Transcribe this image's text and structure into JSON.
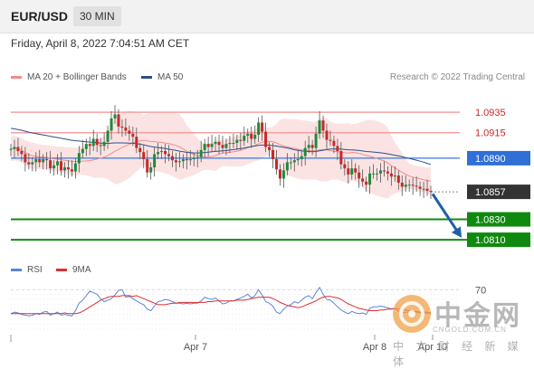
{
  "header": {
    "symbol": "EUR/USD",
    "interval": "30 MIN",
    "timestamp": "Friday, April 8, 2022 7:04:51 AM CET"
  },
  "legend": {
    "items": [
      {
        "name": "MA 20 + Bollinger Bands",
        "color": "#f08c8c"
      },
      {
        "name": "MA 50",
        "color": "#2b4f8c"
      }
    ],
    "credit": "Research © 2022 Trading Central"
  },
  "rsi_legend": {
    "items": [
      {
        "name": "RSI",
        "color": "#5b84d8"
      },
      {
        "name": "9MA",
        "color": "#d83030"
      }
    ]
  },
  "watermark": {
    "text": "中金网",
    "url": "CNGOLD.COM.CN",
    "subtitle": "中 文 财 经 新 媒 体"
  },
  "chart_data": [
    {
      "type": "candlestick",
      "title": "",
      "xlabel": "",
      "ylabel": "",
      "ylim": [
        1.0795,
        1.096
      ],
      "x_ticks": [
        "Apr 7",
        "Apr 8",
        "Apr 10"
      ],
      "grid": false,
      "series": [
        {
          "name": "MA 20 + Bollinger Bands",
          "type": "band",
          "color": "#f08c8c"
        },
        {
          "name": "MA 50",
          "type": "line",
          "color": "#2b4f8c"
        }
      ],
      "levels": [
        {
          "value": 1.0935,
          "label": "1.0935",
          "kind": "resistance",
          "color": "#f4a0a0"
        },
        {
          "value": 1.0915,
          "label": "1.0915",
          "kind": "resistance",
          "color": "#f4a0a0"
        },
        {
          "value": 1.089,
          "label": "1.0890",
          "kind": "pivot",
          "color": "#3a78e0"
        },
        {
          "value": 1.0857,
          "label": "1.0857",
          "kind": "last",
          "color": "#333333"
        },
        {
          "value": 1.083,
          "label": "1.0830",
          "kind": "target",
          "color": "#0f8a0f"
        },
        {
          "value": 1.081,
          "label": "1.0810",
          "kind": "target",
          "color": "#0f8a0f"
        }
      ],
      "forecast": {
        "from": 1.0855,
        "to": 1.0812,
        "direction": "down",
        "color": "#1f5fa8"
      },
      "closes": [
        1.0899,
        1.0901,
        1.0897,
        1.0894,
        1.0886,
        1.0884,
        1.0886,
        1.0889,
        1.0886,
        1.0889,
        1.0888,
        1.088,
        1.0883,
        1.0887,
        1.0878,
        1.0881,
        1.0879,
        1.0877,
        1.0885,
        1.0895,
        1.0899,
        1.0904,
        1.0902,
        1.0909,
        1.0903,
        1.0902,
        1.0906,
        1.0917,
        1.0929,
        1.0933,
        1.0921,
        1.092,
        1.0917,
        1.0914,
        1.0911,
        1.09,
        1.0896,
        1.0889,
        1.0876,
        1.0881,
        1.0894,
        1.0896,
        1.0897,
        1.0894,
        1.0892,
        1.0888,
        1.0886,
        1.0887,
        1.0889,
        1.0888,
        1.0889,
        1.089,
        1.0891,
        1.0898,
        1.0904,
        1.0901,
        1.0904,
        1.0906,
        1.0903,
        1.09,
        1.0904,
        1.0905,
        1.0905,
        1.0908,
        1.0907,
        1.0912,
        1.0914,
        1.0909,
        1.0913,
        1.0925,
        1.0916,
        1.0901,
        1.0898,
        1.0889,
        1.0879,
        1.087,
        1.0878,
        1.0886,
        1.0886,
        1.0888,
        1.0889,
        1.0892,
        1.09,
        1.0903,
        1.09,
        1.0914,
        1.0927,
        1.0917,
        1.0908,
        1.0907,
        1.0902,
        1.0897,
        1.0884,
        1.088,
        1.0874,
        1.088,
        1.0876,
        1.087,
        1.0867,
        1.0864,
        1.0875,
        1.0875,
        1.0875,
        1.0878,
        1.0877,
        1.0875,
        1.0872,
        1.0873,
        1.0866,
        1.0862,
        1.0864,
        1.0864,
        1.0863,
        1.0862,
        1.086,
        1.086,
        1.0858,
        1.0857
      ]
    },
    {
      "type": "line",
      "title": "",
      "series": [
        {
          "name": "RSI",
          "color": "#5b84d8"
        },
        {
          "name": "9MA",
          "color": "#d83030"
        }
      ],
      "ylim": [
        10,
        80
      ],
      "y_ticks": [
        70
      ],
      "rsi": [
        38,
        40,
        39,
        37,
        36,
        35,
        36,
        38,
        37,
        40,
        41,
        36,
        38,
        40,
        36,
        37,
        36,
        35,
        42,
        52,
        56,
        62,
        68,
        66,
        64,
        58,
        54,
        56,
        58,
        63,
        69,
        70,
        60,
        61,
        58,
        55,
        52,
        50,
        44,
        42,
        48,
        54,
        55,
        57,
        56,
        54,
        52,
        52,
        51,
        52,
        51,
        52,
        52,
        55,
        60,
        58,
        57,
        59,
        55,
        51,
        52,
        55,
        55,
        57,
        59,
        61,
        64,
        59,
        62,
        70,
        63,
        54,
        52,
        48,
        40,
        38,
        44,
        48,
        50,
        54,
        52,
        56,
        60,
        62,
        58,
        66,
        73,
        64,
        57,
        56,
        52,
        47,
        43,
        40,
        38,
        41,
        39,
        38,
        39,
        37,
        45,
        47,
        47,
        48,
        47,
        46,
        44,
        45,
        41,
        39,
        40,
        40,
        40,
        40,
        39,
        40,
        38,
        38
      ],
      "ma9": [
        38,
        38,
        38,
        38,
        38,
        38,
        38,
        38,
        38,
        38,
        38,
        38,
        38,
        38,
        38,
        39,
        38,
        38,
        38,
        39,
        41,
        44,
        47,
        50,
        53,
        56,
        58,
        60,
        61,
        61,
        61,
        62,
        62,
        62,
        61,
        62,
        60,
        58,
        56,
        54,
        52,
        50,
        50,
        50,
        51,
        52,
        52,
        53,
        53,
        53,
        53,
        53,
        53,
        53,
        53,
        54,
        54,
        55,
        55,
        55,
        55,
        55,
        55,
        56,
        56,
        56,
        57,
        58,
        59,
        60,
        60,
        60,
        60,
        58,
        56,
        53,
        51,
        49,
        48,
        47,
        46,
        47,
        49,
        51,
        53,
        55,
        58,
        60,
        61,
        61,
        60,
        59,
        57,
        54,
        51,
        49,
        47,
        45,
        44,
        43,
        42,
        42,
        42,
        43,
        43,
        44,
        44,
        45,
        44,
        44,
        43,
        42,
        41,
        41,
        40,
        40,
        40,
        39
      ]
    }
  ]
}
